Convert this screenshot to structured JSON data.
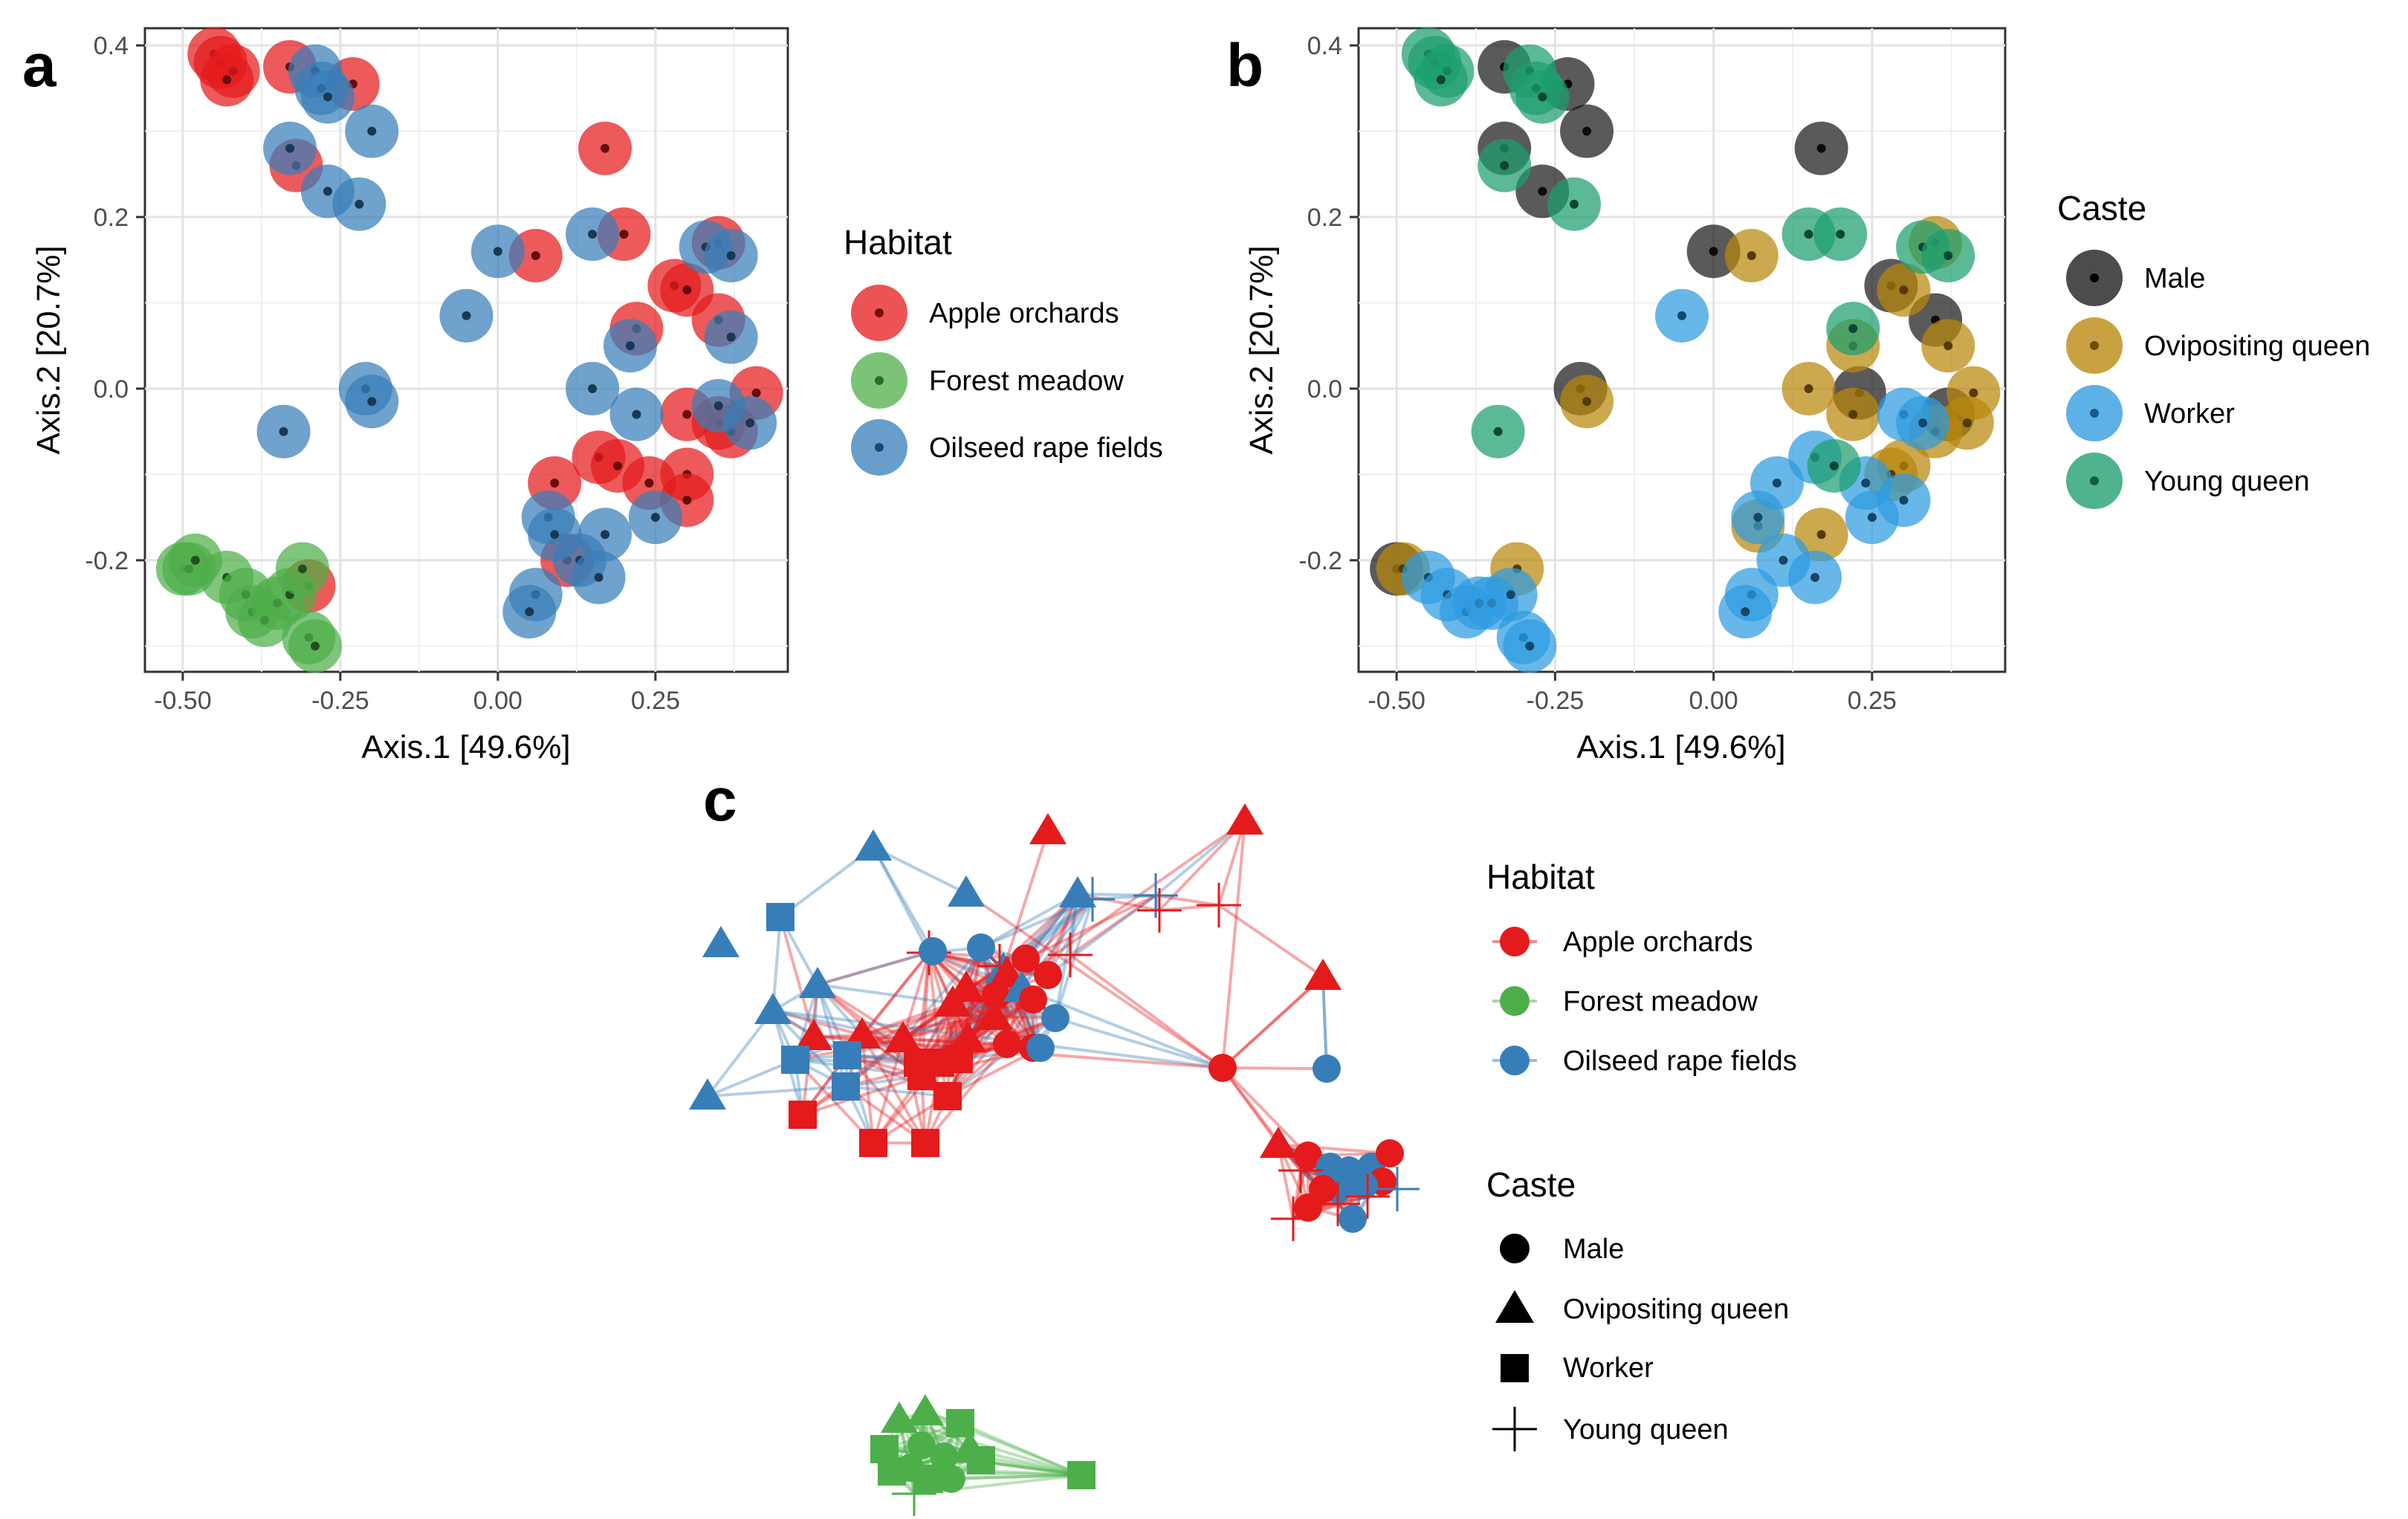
{
  "panels": {
    "a": "a",
    "b": "b",
    "c": "c"
  },
  "colors": {
    "apple": "#E41A1C",
    "meadow": "#4DAF4A",
    "oilseed": "#377EB8",
    "male": "#1A1A1A",
    "ovipositing": "#B8860B",
    "worker": "#2E9BE0",
    "young": "#1D9E6E"
  },
  "chart_data": [
    {
      "type": "scatter",
      "panel": "a",
      "xlabel": "Axis.1   [49.6%]",
      "ylabel": "Axis.2   [20.7%]",
      "xlim": [
        -0.56,
        0.46
      ],
      "ylim": [
        -0.33,
        0.42
      ],
      "xticks": [
        -0.5,
        -0.25,
        0.0,
        0.25
      ],
      "xtick_labels": [
        "-0.50",
        "-0.25",
        "0.00",
        "0.25"
      ],
      "yticks": [
        -0.2,
        0.0,
        0.2,
        0.4
      ],
      "ytick_labels": [
        "-0.2",
        "0.0",
        "0.2",
        "0.4"
      ],
      "grid": true,
      "legend": {
        "title": "Habitat",
        "position": "right",
        "entries": [
          "Apple orchards",
          "Forest meadow",
          "Oilseed rape fields"
        ]
      },
      "series": [
        {
          "name": "Apple orchards",
          "points": [
            [
              -0.45,
              0.39
            ],
            [
              -0.44,
              0.38
            ],
            [
              -0.42,
              0.37
            ],
            [
              -0.43,
              0.36
            ],
            [
              -0.33,
              0.375
            ],
            [
              -0.23,
              0.355
            ],
            [
              -0.32,
              0.26
            ],
            [
              0.17,
              0.28
            ],
            [
              0.06,
              0.155
            ],
            [
              0.2,
              0.18
            ],
            [
              0.28,
              0.12
            ],
            [
              0.3,
              0.115
            ],
            [
              0.35,
              0.17
            ],
            [
              0.35,
              0.08
            ],
            [
              0.22,
              0.07
            ],
            [
              0.41,
              -0.005
            ],
            [
              0.3,
              -0.03
            ],
            [
              0.35,
              -0.04
            ],
            [
              0.37,
              -0.05
            ],
            [
              0.16,
              -0.08
            ],
            [
              0.19,
              -0.09
            ],
            [
              0.09,
              -0.11
            ],
            [
              0.24,
              -0.11
            ],
            [
              0.3,
              -0.1
            ],
            [
              0.3,
              -0.13
            ],
            [
              0.11,
              -0.2
            ],
            [
              -0.3,
              -0.23
            ]
          ]
        },
        {
          "name": "Forest meadow",
          "points": [
            [
              -0.5,
              -0.21
            ],
            [
              -0.49,
              -0.21
            ],
            [
              -0.48,
              -0.2
            ],
            [
              -0.43,
              -0.22
            ],
            [
              -0.4,
              -0.24
            ],
            [
              -0.39,
              -0.26
            ],
            [
              -0.37,
              -0.27
            ],
            [
              -0.35,
              -0.25
            ],
            [
              -0.33,
              -0.24
            ],
            [
              -0.31,
              -0.21
            ],
            [
              -0.3,
              -0.29
            ],
            [
              -0.29,
              -0.3
            ]
          ]
        },
        {
          "name": "Oilseed rape fields",
          "points": [
            [
              -0.29,
              0.37
            ],
            [
              -0.28,
              0.35
            ],
            [
              -0.27,
              0.34
            ],
            [
              -0.2,
              0.3
            ],
            [
              -0.33,
              0.28
            ],
            [
              -0.27,
              0.23
            ],
            [
              -0.22,
              0.215
            ],
            [
              0.0,
              0.16
            ],
            [
              0.15,
              0.18
            ],
            [
              0.33,
              0.165
            ],
            [
              0.37,
              0.155
            ],
            [
              -0.05,
              0.085
            ],
            [
              0.37,
              0.06
            ],
            [
              0.21,
              0.05
            ],
            [
              0.15,
              0.0
            ],
            [
              -0.21,
              0.0
            ],
            [
              -0.2,
              -0.015
            ],
            [
              0.22,
              -0.03
            ],
            [
              0.4,
              -0.04
            ],
            [
              -0.34,
              -0.05
            ],
            [
              0.35,
              -0.02
            ],
            [
              0.08,
              -0.15
            ],
            [
              0.09,
              -0.17
            ],
            [
              0.17,
              -0.17
            ],
            [
              0.25,
              -0.15
            ],
            [
              0.13,
              -0.2
            ],
            [
              0.16,
              -0.22
            ],
            [
              0.06,
              -0.24
            ],
            [
              0.05,
              -0.26
            ]
          ]
        }
      ]
    },
    {
      "type": "scatter",
      "panel": "b",
      "xlabel": "Axis.1   [49.6%]",
      "ylabel": "Axis.2   [20.7%]",
      "xlim": [
        -0.56,
        0.46
      ],
      "ylim": [
        -0.33,
        0.42
      ],
      "xticks": [
        -0.5,
        -0.25,
        0.0,
        0.25
      ],
      "xtick_labels": [
        "-0.50",
        "-0.25",
        "0.00",
        "0.25"
      ],
      "yticks": [
        -0.2,
        0.0,
        0.2,
        0.4
      ],
      "ytick_labels": [
        "-0.2",
        "0.0",
        "0.2",
        "0.4"
      ],
      "grid": true,
      "legend": {
        "title": "Caste",
        "position": "right",
        "entries": [
          "Male",
          "Ovipositing queen",
          "Worker",
          "Young queen"
        ]
      },
      "series": [
        {
          "name": "Male",
          "points": [
            [
              -0.33,
              0.375
            ],
            [
              -0.23,
              0.355
            ],
            [
              -0.2,
              0.3
            ],
            [
              -0.33,
              0.28
            ],
            [
              -0.27,
              0.23
            ],
            [
              0.17,
              0.28
            ],
            [
              0.0,
              0.16
            ],
            [
              0.28,
              0.12
            ],
            [
              0.35,
              0.08
            ],
            [
              -0.21,
              0.0
            ],
            [
              0.23,
              -0.005
            ],
            [
              0.37,
              -0.03
            ],
            [
              -0.5,
              -0.21
            ]
          ]
        },
        {
          "name": "Ovipositing queen",
          "points": [
            [
              0.06,
              0.155
            ],
            [
              0.35,
              0.17
            ],
            [
              0.3,
              0.115
            ],
            [
              0.37,
              0.05
            ],
            [
              0.15,
              0.0
            ],
            [
              0.41,
              -0.005
            ],
            [
              0.22,
              0.05
            ],
            [
              -0.2,
              -0.015
            ],
            [
              0.22,
              -0.03
            ],
            [
              0.4,
              -0.04
            ],
            [
              0.35,
              -0.05
            ],
            [
              0.3,
              -0.09
            ],
            [
              0.28,
              -0.1
            ],
            [
              0.07,
              -0.16
            ],
            [
              0.17,
              -0.17
            ],
            [
              -0.31,
              -0.21
            ],
            [
              -0.49,
              -0.21
            ]
          ]
        },
        {
          "name": "Worker",
          "points": [
            [
              -0.05,
              0.085
            ],
            [
              0.3,
              -0.03
            ],
            [
              0.33,
              -0.04
            ],
            [
              0.16,
              -0.08
            ],
            [
              0.1,
              -0.11
            ],
            [
              0.24,
              -0.11
            ],
            [
              0.3,
              -0.13
            ],
            [
              0.07,
              -0.15
            ],
            [
              0.25,
              -0.15
            ],
            [
              0.11,
              -0.2
            ],
            [
              0.16,
              -0.22
            ],
            [
              0.06,
              -0.24
            ],
            [
              0.05,
              -0.26
            ],
            [
              -0.45,
              -0.22
            ],
            [
              -0.42,
              -0.24
            ],
            [
              -0.39,
              -0.26
            ],
            [
              -0.37,
              -0.25
            ],
            [
              -0.35,
              -0.25
            ],
            [
              -0.32,
              -0.24
            ],
            [
              -0.3,
              -0.29
            ],
            [
              -0.29,
              -0.3
            ]
          ]
        },
        {
          "name": "Young queen",
          "points": [
            [
              -0.45,
              0.39
            ],
            [
              -0.44,
              0.38
            ],
            [
              -0.42,
              0.37
            ],
            [
              -0.43,
              0.36
            ],
            [
              -0.29,
              0.37
            ],
            [
              -0.28,
              0.35
            ],
            [
              -0.27,
              0.34
            ],
            [
              -0.33,
              0.26
            ],
            [
              -0.22,
              0.215
            ],
            [
              0.15,
              0.18
            ],
            [
              0.2,
              0.18
            ],
            [
              0.33,
              0.165
            ],
            [
              0.37,
              0.155
            ],
            [
              0.22,
              0.07
            ],
            [
              -0.34,
              -0.05
            ],
            [
              0.19,
              -0.09
            ]
          ]
        }
      ]
    },
    {
      "type": "network",
      "panel": "c",
      "legend": [
        {
          "title": "Habitat",
          "entries": [
            "Apple orchards",
            "Forest meadow",
            "Oilseed rape fields"
          ]
        },
        {
          "title": "Caste",
          "entries": [
            "Male",
            "Ovipositing queen",
            "Worker",
            "Young queen"
          ]
        }
      ]
    }
  ]
}
